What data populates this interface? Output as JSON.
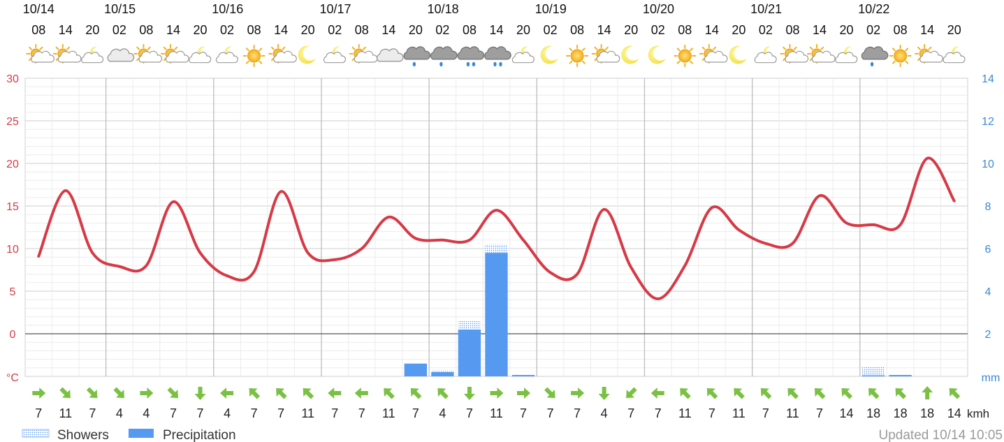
{
  "colors": {
    "temperature_line": "#d63a46",
    "precipitation_bar": "#5599f0",
    "showers_fill": "#5599f0",
    "left_axis_text": "#d63a46",
    "right_axis_text": "#3a88d8",
    "wind_arrow": "#7ac143",
    "grid_major": "#cccccc",
    "grid_minor": "#ebebeb",
    "zero_line": "#555555",
    "updated_text": "#9a9a9a"
  },
  "header": {
    "dates": [
      "10/14",
      "10/15",
      "10/16",
      "10/17",
      "10/18",
      "10/19",
      "10/20",
      "10/21",
      "10/22"
    ],
    "hours": [
      "08",
      "14",
      "20",
      "02",
      "08",
      "14",
      "20",
      "02",
      "08",
      "14",
      "20",
      "02",
      "08",
      "14",
      "20",
      "02",
      "08",
      "14",
      "20",
      "02",
      "08",
      "14",
      "20",
      "02",
      "08",
      "14",
      "20",
      "02",
      "08",
      "14",
      "20",
      "02",
      "08",
      "14",
      "20"
    ],
    "weather_icons": [
      "sun-cloud",
      "sun-cloud",
      "moon-cloud",
      "cloudy",
      "sun-cloud",
      "sun-cloud",
      "moon-cloud",
      "moon-cloud",
      "sunny",
      "sun-cloud",
      "clear-night",
      "moon-cloud",
      "sun-cloud",
      "cloudy",
      "rain-shower",
      "rain-shower",
      "rain",
      "rain",
      "moon-cloud",
      "clear-night",
      "sunny",
      "sun-cloud",
      "clear-night",
      "clear-night",
      "sunny",
      "sun-cloud",
      "clear-night",
      "moon-cloud",
      "sun-cloud",
      "sun-cloud",
      "moon-cloud",
      "rain-shower",
      "sunny",
      "sun-cloud",
      "moon-cloud"
    ]
  },
  "chart_data": {
    "type": "line",
    "time_labels": [
      "10/14 08",
      "10/14 14",
      "10/14 20",
      "10/15 02",
      "10/15 08",
      "10/15 14",
      "10/15 20",
      "10/16 02",
      "10/16 08",
      "10/16 14",
      "10/16 20",
      "10/17 02",
      "10/17 08",
      "10/17 14",
      "10/17 20",
      "10/18 02",
      "10/18 08",
      "10/18 14",
      "10/18 20",
      "10/19 02",
      "10/19 08",
      "10/19 14",
      "10/19 20",
      "10/20 02",
      "10/20 08",
      "10/20 14",
      "10/20 20",
      "10/21 02",
      "10/21 08",
      "10/21 14",
      "10/21 20",
      "10/22 02",
      "10/22 08",
      "10/22 14",
      "10/22 20"
    ],
    "y_left": {
      "unit": "°C",
      "min": -5,
      "max": 30,
      "ticks": [
        30,
        25,
        20,
        15,
        10,
        5,
        0
      ]
    },
    "y_right": {
      "unit": "mm",
      "min": 0,
      "max": 14,
      "ticks": [
        14,
        12,
        10,
        8,
        6,
        4,
        2
      ]
    },
    "series": [
      {
        "name": "Temperature",
        "type": "line",
        "values": [
          9.1,
          16.8,
          9.5,
          7.9,
          8.0,
          15.5,
          9.5,
          6.8,
          7.3,
          16.7,
          9.5,
          8.7,
          10.0,
          13.7,
          11.2,
          11.0,
          11.0,
          14.5,
          11.0,
          7.2,
          7.0,
          14.6,
          7.8,
          4.1,
          8.0,
          14.8,
          12.2,
          10.6,
          10.6,
          16.2,
          13.0,
          12.8,
          12.8,
          20.6,
          15.6
        ]
      },
      {
        "name": "Precipitation",
        "type": "bar",
        "values": [
          0,
          0,
          0,
          0,
          0,
          0,
          0,
          0,
          0,
          0,
          0,
          0,
          0,
          0,
          0.6,
          0.2,
          2.2,
          5.8,
          0.05,
          0,
          0,
          0,
          0,
          0,
          0,
          0,
          0,
          0,
          0,
          0,
          0,
          0.05,
          0.05,
          0,
          0
        ]
      },
      {
        "name": "Showers",
        "type": "bar",
        "values": [
          0,
          0,
          0,
          0,
          0,
          0,
          0,
          0,
          0,
          0,
          0,
          0,
          0,
          0,
          0,
          0.1,
          0.4,
          0.4,
          0,
          0,
          0,
          0,
          0,
          0,
          0,
          0,
          0,
          0,
          0,
          0,
          0,
          0.4,
          0,
          0,
          0
        ]
      }
    ],
    "wind": {
      "unit": "kmh",
      "speeds": [
        7,
        11,
        7,
        4,
        4,
        7,
        7,
        4,
        7,
        7,
        11,
        7,
        7,
        11,
        7,
        4,
        7,
        11,
        7,
        7,
        7,
        4,
        7,
        7,
        11,
        7,
        11,
        7,
        11,
        7,
        14,
        18,
        18,
        18,
        14
      ],
      "directions": [
        "E",
        "SE",
        "SE",
        "SE",
        "E",
        "SE",
        "S",
        "W",
        "NW",
        "NW",
        "NW",
        "W",
        "W",
        "NW",
        "NW",
        "NW",
        "S",
        "E",
        "E",
        "SE",
        "E",
        "S",
        "SW",
        "W",
        "NW",
        "NW",
        "NW",
        "NW",
        "NW",
        "NW",
        "NW",
        "NW",
        "NW",
        "N",
        "NW"
      ]
    },
    "legend": [
      {
        "label": "Showers",
        "style": "dotted"
      },
      {
        "label": "Precipitation",
        "style": "solid"
      }
    ],
    "grid": true
  },
  "footer": {
    "updated_text": "Updated 10/14 10:05"
  }
}
